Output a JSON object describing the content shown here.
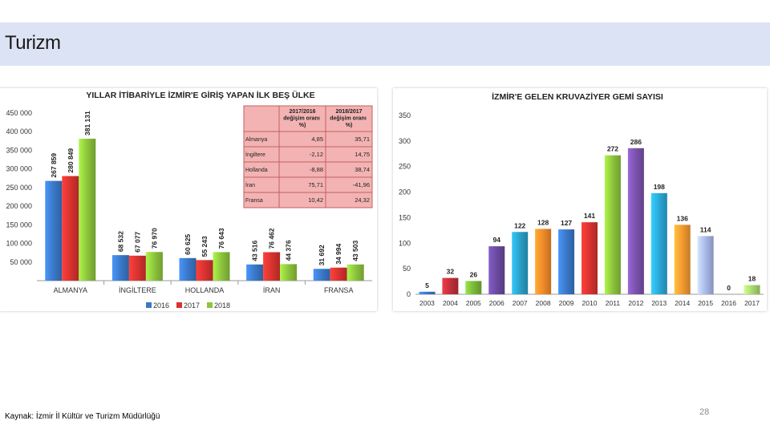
{
  "slide": {
    "title": "Turizm",
    "source": "Kaynak: İzmir İl Kültür ve Turizm Müdürlüğü",
    "page_number": "28"
  },
  "colors": {
    "2016": "#3a78c8",
    "2017": "#d8332f",
    "2018": "#8cc43c",
    "table_bg": "#f4b3b3",
    "table_border": "#c06060"
  },
  "chart_data": [
    {
      "type": "bar",
      "title": "YILLAR İTİBARİYLE İZMİR'E GİRİŞ YAPAN İLK BEŞ ÜLKE",
      "categories": [
        "ALMANYA",
        "İNGİLTERE",
        "HOLLANDA",
        "İRAN",
        "FRANSA"
      ],
      "series": [
        {
          "name": "2016",
          "values": [
            267859,
            68532,
            60625,
            43516,
            31692
          ],
          "labels": [
            "267 859",
            "68 532",
            "60 625",
            "43 516",
            "31 692"
          ]
        },
        {
          "name": "2017",
          "values": [
            280849,
            67077,
            55243,
            76462,
            34994
          ],
          "labels": [
            "280 849",
            "67 077",
            "55 243",
            "76 462",
            "34 994"
          ]
        },
        {
          "name": "2018",
          "values": [
            381131,
            76970,
            76643,
            44376,
            43503
          ],
          "labels": [
            "381 131",
            "76 970",
            "76 643",
            "44 376",
            "43 503"
          ]
        }
      ],
      "y_ticks": [
        "50 000",
        "100 000",
        "150 000",
        "200 000",
        "250 000",
        "300 000",
        "350 000",
        "400 000",
        "450 000"
      ],
      "ylim": [
        0,
        450000
      ],
      "legend": "bottom",
      "table": {
        "headers": [
          "2017/2016 değişim oranı (%)",
          "2018/2017 değişim oranı (%)"
        ],
        "rows": [
          {
            "country": "Almanya",
            "a": "4,85",
            "b": "35,71"
          },
          {
            "country": "İngiltere",
            "a": "-2,12",
            "b": "14,75"
          },
          {
            "country": "Hollanda",
            "a": "-8,88",
            "b": "38,74"
          },
          {
            "country": "İran",
            "a": "75,71",
            "b": "-41,96"
          },
          {
            "country": "Fransa",
            "a": "10,42",
            "b": "24,32"
          }
        ]
      }
    },
    {
      "type": "bar",
      "title": "İZMİR'E GELEN KRUVAZİYER GEMİ SAYISI",
      "categories": [
        "2003",
        "2004",
        "2005",
        "2006",
        "2007",
        "2008",
        "2009",
        "2010",
        "2011",
        "2012",
        "2013",
        "2014",
        "2015",
        "2016",
        "2017"
      ],
      "values": [
        5,
        32,
        26,
        94,
        122,
        128,
        127,
        141,
        272,
        286,
        198,
        136,
        114,
        0,
        18
      ],
      "bar_colors": [
        "#3a78c8",
        "#c0303a",
        "#7ab83a",
        "#6a4aa0",
        "#2aa0c8",
        "#f08a28",
        "#3a78c8",
        "#d8332f",
        "#8cc43c",
        "#7a52ac",
        "#2aa8d8",
        "#f39a30",
        "#a8b8e8",
        "#d8332f",
        "#a8d870"
      ],
      "y_ticks": [
        "0",
        "50",
        "100",
        "150",
        "200",
        "250",
        "300",
        "350"
      ],
      "ylim": [
        0,
        350
      ]
    }
  ]
}
